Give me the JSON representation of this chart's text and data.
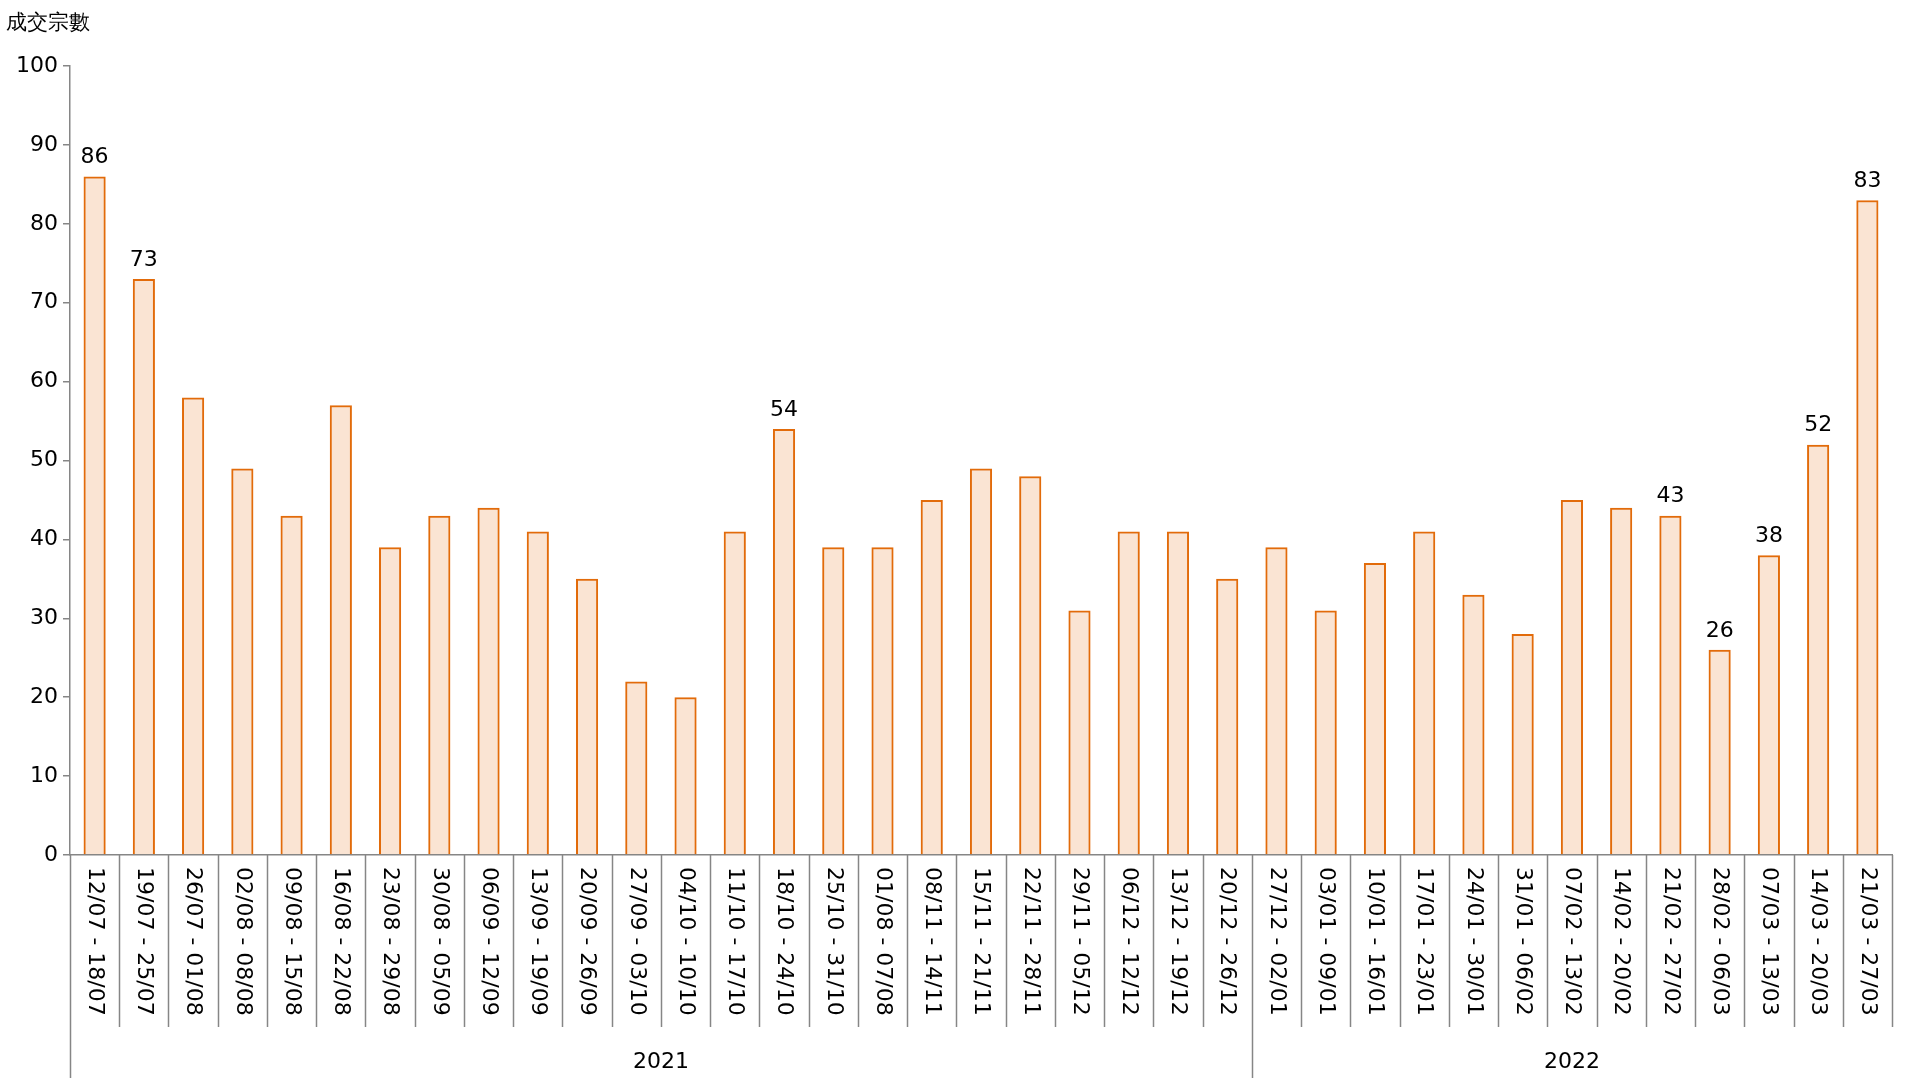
{
  "chart_data": {
    "type": "bar",
    "ylabel": "成交宗數",
    "categories": [
      "12/07 - 18/07",
      "19/07 - 25/07",
      "26/07 - 01/08",
      "02/08 - 08/08",
      "09/08 - 15/08",
      "16/08 - 22/08",
      "23/08 - 29/08",
      "30/08 - 05/09",
      "06/09 - 12/09",
      "13/09 - 19/09",
      "20/09 - 26/09",
      "27/09 - 03/10",
      "04/10 - 10/10",
      "11/10 - 17/10",
      "18/10 - 24/10",
      "25/10 - 31/10",
      "01/08 - 07/08",
      "08/11 - 14/11",
      "15/11 - 21/11",
      "22/11 - 28/11",
      "29/11 - 05/12",
      "06/12 - 12/12",
      "13/12 - 19/12",
      "20/12 - 26/12",
      "27/12 - 02/01",
      "03/01 - 09/01",
      "10/01 - 16/01",
      "17/01 - 23/01",
      "24/01 - 30/01",
      "31/01 - 06/02",
      "07/02 - 13/02",
      "14/02 - 20/02",
      "21/02 - 27/02",
      "28/02 - 06/03",
      "07/03 - 13/03",
      "14/03 - 20/03",
      "21/03 - 27/03"
    ],
    "values": [
      86,
      73,
      58,
      49,
      43,
      57,
      39,
      43,
      44,
      41,
      35,
      22,
      20,
      41,
      54,
      39,
      39,
      45,
      49,
      48,
      31,
      41,
      41,
      35,
      39,
      31,
      37,
      41,
      33,
      28,
      45,
      44,
      43,
      26,
      38,
      52,
      83
    ],
    "value_labels": [
      "86",
      "73",
      null,
      null,
      null,
      null,
      null,
      null,
      null,
      null,
      null,
      null,
      null,
      null,
      "54",
      null,
      null,
      null,
      null,
      null,
      null,
      null,
      null,
      null,
      null,
      null,
      null,
      null,
      null,
      null,
      null,
      null,
      "43",
      "26",
      "38",
      "52",
      "83"
    ],
    "color": "#e26b0a",
    "ylim": [
      0,
      100
    ],
    "yticks": [
      0,
      10,
      20,
      30,
      40,
      50,
      60,
      70,
      80,
      90,
      100
    ],
    "grid": false,
    "annotations": [
      "2021",
      "2022"
    ]
  }
}
